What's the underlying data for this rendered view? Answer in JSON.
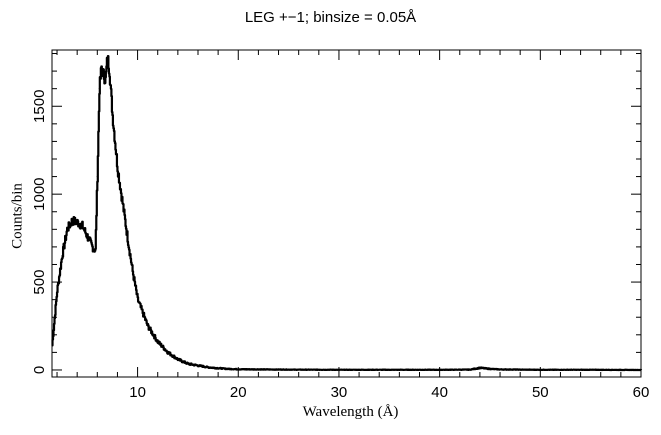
{
  "chart_data": {
    "type": "line",
    "title": "LEG +−1; binsize = 0.05Å",
    "xlabel": "Wavelength (Å)",
    "ylabel": "Counts/bin",
    "xlim": [
      1.5,
      60
    ],
    "ylim": [
      -40,
      1820
    ],
    "x_ticks": [
      10,
      20,
      30,
      40,
      50,
      60
    ],
    "y_ticks": [
      0,
      500,
      1000,
      1500
    ],
    "grid": false,
    "legend": "none",
    "series": [
      {
        "color": "#000000",
        "x": [
          1.5,
          2.0,
          2.5,
          3.0,
          3.5,
          4.0,
          4.5,
          5.0,
          5.5,
          5.8,
          6.0,
          6.2,
          6.4,
          6.6,
          6.8,
          7.0,
          7.2,
          7.5,
          8.0,
          8.5,
          9.0,
          9.5,
          10,
          11,
          12,
          13,
          14,
          15,
          16,
          17,
          18,
          19,
          20,
          25,
          30,
          35,
          40,
          43,
          44,
          45,
          46,
          50,
          55,
          60
        ],
        "y": [
          140,
          450,
          650,
          800,
          850,
          840,
          820,
          760,
          700,
          680,
          1100,
          1600,
          1720,
          1680,
          1650,
          1780,
          1700,
          1450,
          1150,
          950,
          750,
          560,
          400,
          250,
          160,
          100,
          60,
          35,
          25,
          15,
          10,
          6,
          4,
          2,
          1,
          1,
          1,
          2,
          12,
          6,
          3,
          1,
          1,
          0
        ]
      }
    ]
  }
}
